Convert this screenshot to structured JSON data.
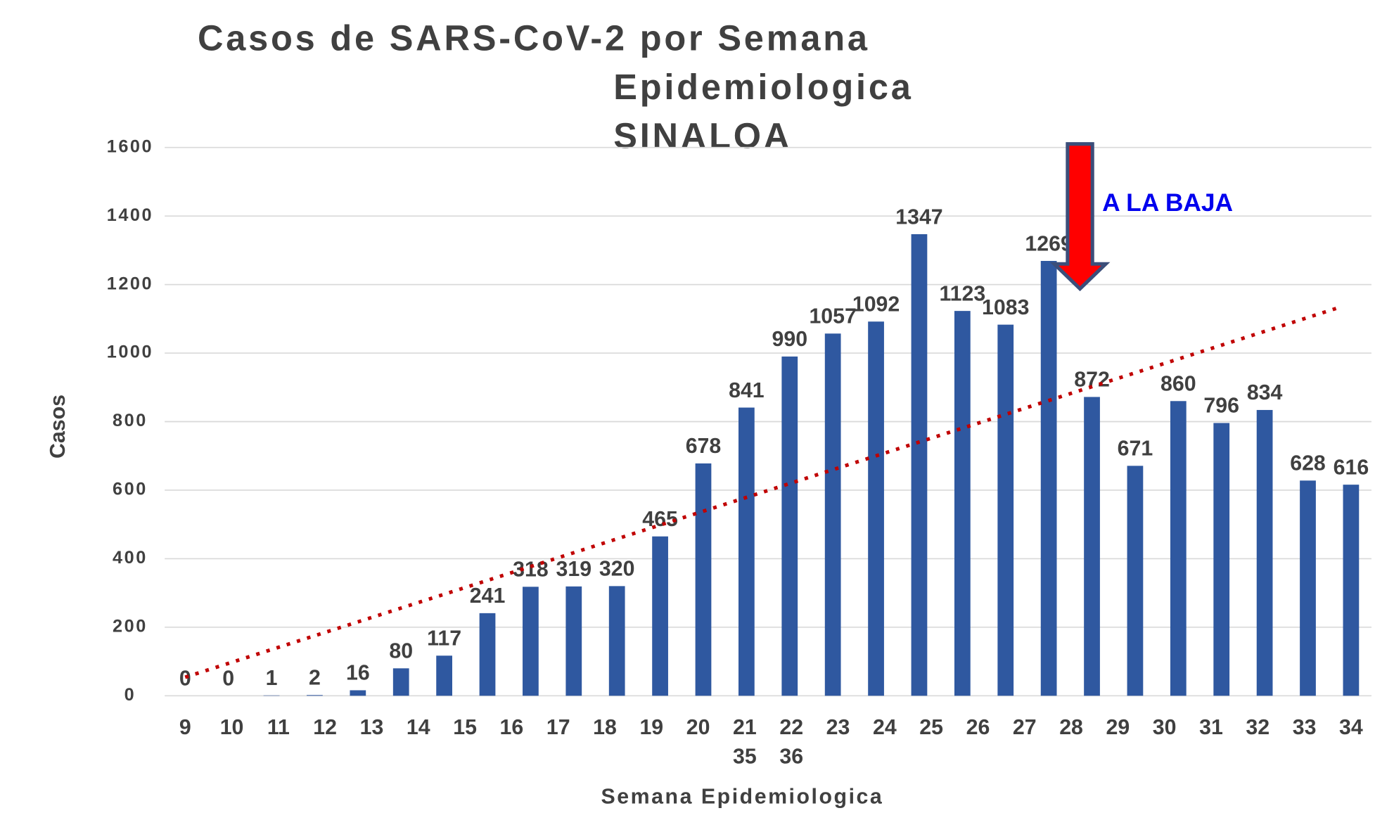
{
  "chart_data": {
    "type": "bar",
    "title": [
      "Casos de SARS-CoV-2 por Semana",
      "Epidemiologica",
      "SINALOA"
    ],
    "x_label": "Semana Epidemiologica",
    "y_label": "Casos",
    "categories": [
      "9",
      "10",
      "11",
      "12",
      "13",
      "14",
      "15",
      "16",
      "17",
      "18",
      "19",
      "20",
      "21",
      "22",
      "23",
      "24",
      "25",
      "26",
      "27",
      "28",
      "29",
      "30",
      "31",
      "32",
      "33",
      "34",
      "35",
      "36"
    ],
    "values": [
      0,
      0,
      1,
      2,
      16,
      80,
      117,
      241,
      318,
      319,
      320,
      465,
      678,
      841,
      990,
      1057,
      1092,
      1347,
      1123,
      1083,
      1269,
      872,
      671,
      860,
      796,
      834,
      628,
      616
    ],
    "color": "#2f58a0",
    "ylim": [
      0,
      1600
    ],
    "yticks": [
      0,
      200,
      400,
      600,
      800,
      1000,
      1200,
      1400,
      1600
    ],
    "grid": true,
    "trendline": "linear",
    "trend_color": "#c00000",
    "annotation": "A LA BAJA"
  }
}
